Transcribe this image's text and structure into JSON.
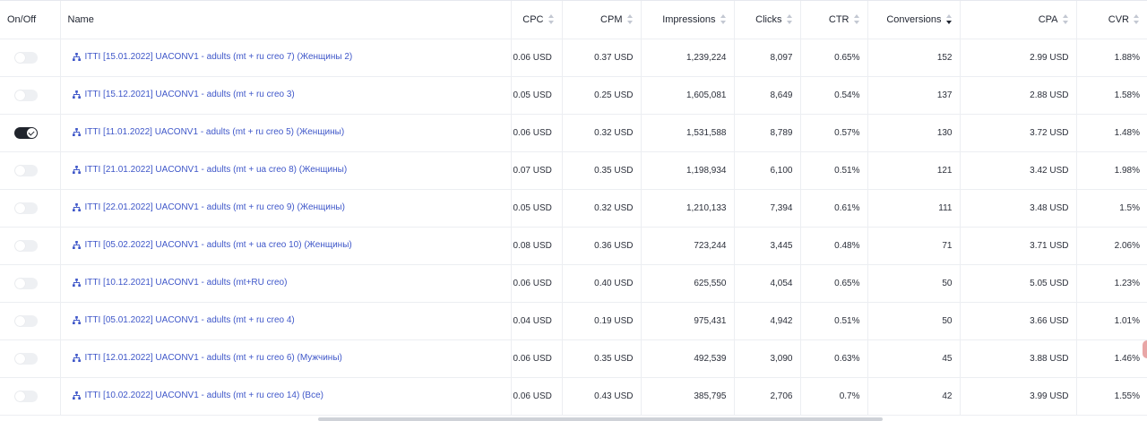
{
  "columns": {
    "onoff": "On/Off",
    "name": "Name",
    "cpc": "CPC",
    "cpm": "CPM",
    "impressions": "Impressions",
    "clicks": "Clicks",
    "ctr": "CTR",
    "conversions": "Conversions",
    "cpa": "CPA",
    "cvr": "CVR"
  },
  "sort": {
    "column": "conversions",
    "direction": "desc"
  },
  "rows": [
    {
      "on": false,
      "name": "ITTI [15.01.2022] UACONV1 - adults (mt + ru creo 7) (Женщины 2)",
      "cpc": "0.06 USD",
      "cpm": "0.37 USD",
      "impressions": "1,239,224",
      "clicks": "8,097",
      "ctr": "0.65%",
      "conversions": "152",
      "cpa": "2.99 USD",
      "cvr": "1.88%"
    },
    {
      "on": false,
      "name": "ITTI [15.12.2021] UACONV1 - adults (mt + ru creo 3)",
      "cpc": "0.05 USD",
      "cpm": "0.25 USD",
      "impressions": "1,605,081",
      "clicks": "8,649",
      "ctr": "0.54%",
      "conversions": "137",
      "cpa": "2.88 USD",
      "cvr": "1.58%"
    },
    {
      "on": true,
      "name": "ITTI [11.01.2022] UACONV1 - adults (mt + ru creo 5) (Женщины)",
      "cpc": "0.06 USD",
      "cpm": "0.32 USD",
      "impressions": "1,531,588",
      "clicks": "8,789",
      "ctr": "0.57%",
      "conversions": "130",
      "cpa": "3.72 USD",
      "cvr": "1.48%"
    },
    {
      "on": false,
      "name": "ITTI [21.01.2022] UACONV1 - adults (mt + ua creo 8) (Женщины)",
      "cpc": "0.07 USD",
      "cpm": "0.35 USD",
      "impressions": "1,198,934",
      "clicks": "6,100",
      "ctr": "0.51%",
      "conversions": "121",
      "cpa": "3.42 USD",
      "cvr": "1.98%"
    },
    {
      "on": false,
      "name": "ITTI [22.01.2022] UACONV1 - adults (mt + ru creo 9) (Женщины)",
      "cpc": "0.05 USD",
      "cpm": "0.32 USD",
      "impressions": "1,210,133",
      "clicks": "7,394",
      "ctr": "0.61%",
      "conversions": "111",
      "cpa": "3.48 USD",
      "cvr": "1.5%"
    },
    {
      "on": false,
      "name": "ITTI [05.02.2022] UACONV1 - adults (mt + ua creo 10) (Женщины)",
      "cpc": "0.08 USD",
      "cpm": "0.36 USD",
      "impressions": "723,244",
      "clicks": "3,445",
      "ctr": "0.48%",
      "conversions": "71",
      "cpa": "3.71 USD",
      "cvr": "2.06%"
    },
    {
      "on": false,
      "name": "ITTI [10.12.2021] UACONV1 - adults (mt+RU creo)",
      "cpc": "0.06 USD",
      "cpm": "0.40 USD",
      "impressions": "625,550",
      "clicks": "4,054",
      "ctr": "0.65%",
      "conversions": "50",
      "cpa": "5.05 USD",
      "cvr": "1.23%"
    },
    {
      "on": false,
      "name": "ITTI [05.01.2022] UACONV1 - adults (mt + ru creo 4)",
      "cpc": "0.04 USD",
      "cpm": "0.19 USD",
      "impressions": "975,431",
      "clicks": "4,942",
      "ctr": "0.51%",
      "conversions": "50",
      "cpa": "3.66 USD",
      "cvr": "1.01%"
    },
    {
      "on": false,
      "name": "ITTI [12.01.2022] UACONV1 - adults (mt + ru creo 6) (Мужчины)",
      "cpc": "0.06 USD",
      "cpm": "0.35 USD",
      "impressions": "492,539",
      "clicks": "3,090",
      "ctr": "0.63%",
      "conversions": "45",
      "cpa": "3.88 USD",
      "cvr": "1.46%"
    },
    {
      "on": false,
      "name": "ITTI [10.02.2022] UACONV1 - adults (mt + ru creo 14) (Все)",
      "cpc": "0.06 USD",
      "cpm": "0.43 USD",
      "impressions": "385,795",
      "clicks": "2,706",
      "ctr": "0.7%",
      "conversions": "42",
      "cpa": "3.99 USD",
      "cvr": "1.55%"
    }
  ],
  "icons": {
    "row_icon": "hierarchy-icon",
    "sort": "sort-icon",
    "toggle": "toggle-switch"
  },
  "colors": {
    "link": "#3f57c9",
    "toggle_on": "#20242c",
    "toggle_off": "#eef0f3",
    "border": "#eceef2"
  }
}
